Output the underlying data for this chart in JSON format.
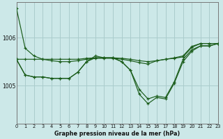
{
  "title": "Graphe pression niveau de la mer (hPa)",
  "bg_color": "#cce8e8",
  "grid_color": "#aacccc",
  "line_color": "#1a5c1a",
  "xlim": [
    0,
    23
  ],
  "ylim": [
    1004.2,
    1006.75
  ],
  "yticks": [
    1005,
    1006
  ],
  "xticks": [
    0,
    1,
    2,
    3,
    4,
    5,
    6,
    7,
    8,
    9,
    10,
    11,
    12,
    13,
    14,
    15,
    16,
    17,
    18,
    19,
    20,
    21,
    22,
    23
  ],
  "series": [
    [
      1006.62,
      1005.78,
      1005.62,
      1005.55,
      1005.52,
      1005.5,
      1005.5,
      1005.52,
      1005.55,
      1005.57,
      1005.57,
      1005.57,
      1005.55,
      1005.52,
      1005.48,
      1005.45,
      1005.52,
      1005.55,
      1005.58,
      1005.62,
      1005.82,
      1005.88,
      1005.88,
      1005.88
    ],
    [
      1005.55,
      1005.55,
      1005.55,
      1005.55,
      1005.55,
      1005.55,
      1005.55,
      1005.55,
      1005.57,
      1005.58,
      1005.58,
      1005.58,
      1005.57,
      1005.55,
      1005.52,
      1005.5,
      1005.52,
      1005.55,
      1005.57,
      1005.6,
      1005.8,
      1005.88,
      1005.88,
      1005.88
    ],
    [
      1005.55,
      1005.22,
      1005.18,
      1005.18,
      1005.15,
      1005.15,
      1005.15,
      1005.28,
      1005.5,
      1005.58,
      1005.58,
      1005.58,
      1005.5,
      1005.32,
      1004.92,
      1004.72,
      1004.78,
      1004.75,
      1005.08,
      1005.55,
      1005.75,
      1005.83,
      1005.83,
      1005.88
    ],
    [
      1005.55,
      1005.22,
      1005.18,
      1005.18,
      1005.15,
      1005.15,
      1005.15,
      1005.28,
      1005.5,
      1005.62,
      1005.58,
      1005.58,
      1005.5,
      1005.32,
      1004.82,
      1004.62,
      1004.75,
      1004.72,
      1005.05,
      1005.5,
      1005.72,
      1005.83,
      1005.83,
      1005.88
    ]
  ]
}
